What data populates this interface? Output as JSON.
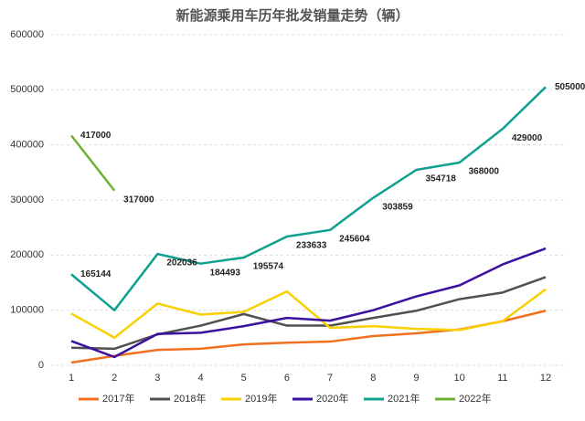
{
  "chart_data": {
    "type": "line",
    "title": "新能源乘用车历年批发销量走势（辆）",
    "categories": [
      "1",
      "2",
      "3",
      "4",
      "5",
      "6",
      "7",
      "8",
      "9",
      "10",
      "11",
      "12"
    ],
    "ylim": [
      0,
      600000
    ],
    "yticks": [
      0,
      100000,
      200000,
      300000,
      400000,
      500000,
      600000
    ],
    "grid": true,
    "legend": "bottom",
    "series": [
      {
        "name": "2017年",
        "color": "#f07020",
        "values": [
          5000,
          17000,
          28000,
          30000,
          38000,
          41000,
          43000,
          53000,
          58000,
          65000,
          80000,
          99000
        ]
      },
      {
        "name": "2018年",
        "color": "#505050",
        "values": [
          32000,
          30000,
          56000,
          72000,
          93000,
          72000,
          72000,
          86000,
          99000,
          120000,
          132000,
          160000
        ]
      },
      {
        "name": "2019年",
        "color": "#f8d000",
        "values": [
          94000,
          50000,
          112000,
          92000,
          97000,
          134000,
          68000,
          71000,
          66000,
          64000,
          80000,
          138000
        ]
      },
      {
        "name": "2020年",
        "color": "#3a10a0",
        "values": [
          44000,
          15000,
          57000,
          59000,
          71000,
          86000,
          81000,
          100000,
          125000,
          145000,
          183000,
          212000
        ]
      },
      {
        "name": "2021年",
        "color": "#10a090",
        "values": [
          165144,
          100000,
          202036,
          184493,
          195574,
          233633,
          245604,
          303859,
          354718,
          368000,
          429000,
          505000
        ],
        "value_labels": [
          "165144",
          null,
          "202036",
          "184493",
          "195574",
          "233633",
          "245604",
          "303859",
          "354718",
          "368000",
          "429000",
          "505000"
        ]
      },
      {
        "name": "2022年",
        "color": "#70b030",
        "values": [
          417000,
          317000,
          null,
          null,
          null,
          null,
          null,
          null,
          null,
          null,
          null,
          null
        ],
        "value_labels": [
          "417000",
          "317000",
          null,
          null,
          null,
          null,
          null,
          null,
          null,
          null,
          null,
          null
        ]
      }
    ]
  }
}
